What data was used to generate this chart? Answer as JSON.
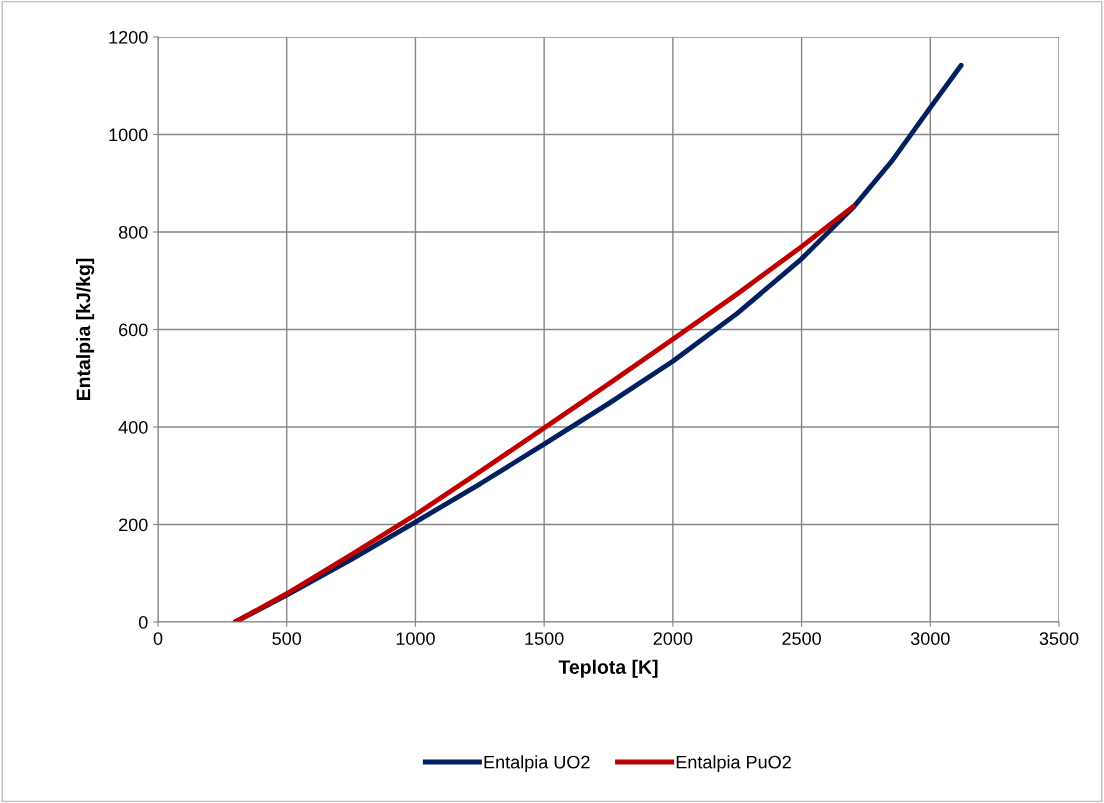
{
  "chart_data": {
    "type": "line",
    "xlabel": "Teplota [K]",
    "ylabel": "Entalpia [kJ/kg]",
    "xlim": [
      0,
      3500
    ],
    "xticks": [
      0,
      500,
      1000,
      1500,
      2000,
      2500,
      3000,
      3500
    ],
    "ylim": [
      0,
      1200
    ],
    "yticks": [
      0,
      200,
      400,
      600,
      800,
      1000,
      1200
    ],
    "grid": true,
    "legend": "bottom",
    "marker": "none",
    "line_style": "solid",
    "series": [
      {
        "name": "Entalpia UO2",
        "color": "#002060",
        "x": [
          300,
          500,
          750,
          1000,
          1250,
          1500,
          1750,
          2000,
          2250,
          2500,
          2700,
          2850,
          3000,
          3120
        ],
        "values": [
          0,
          55,
          128,
          205,
          283,
          365,
          448,
          535,
          633,
          745,
          850,
          945,
          1055,
          1142
        ]
      },
      {
        "name": "Entalpia PuO2",
        "color": "#c00000",
        "x": [
          300,
          500,
          750,
          1000,
          1250,
          1500,
          1750,
          2000,
          2250,
          2500,
          2700
        ],
        "values": [
          0,
          58,
          138,
          220,
          308,
          398,
          488,
          580,
          673,
          770,
          852
        ]
      }
    ]
  }
}
